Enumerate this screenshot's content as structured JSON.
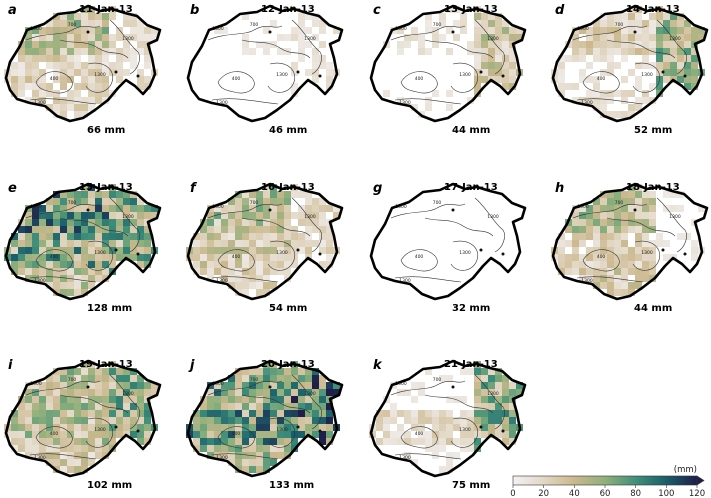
{
  "panels": [
    {
      "letter": "a",
      "date": "11-Jan-13",
      "total": "66 mm",
      "wet": [
        0.55,
        0.35,
        0.25,
        0.3
      ]
    },
    {
      "letter": "b",
      "date": "12-Jan-13",
      "total": "46 mm",
      "wet": [
        0.15,
        0.1,
        0.2,
        0.1
      ]
    },
    {
      "letter": "c",
      "date": "13-Jan-13",
      "total": "44 mm",
      "wet": [
        0.2,
        0.1,
        0.45,
        0.15
      ]
    },
    {
      "letter": "d",
      "date": "14-Jan-13",
      "total": "52 mm",
      "wet": [
        0.35,
        0.2,
        0.6,
        0.25
      ]
    },
    {
      "letter": "e",
      "date": "15-Jan-13",
      "total": "128 mm",
      "wet": [
        0.85,
        0.75,
        0.7,
        0.5
      ]
    },
    {
      "letter": "f",
      "date": "16-Jan-13",
      "total": "54 mm",
      "wet": [
        0.55,
        0.45,
        0.3,
        0.35
      ]
    },
    {
      "letter": "g",
      "date": "17-Jan-13",
      "total": "32 mm",
      "wet": [
        0.1,
        0.05,
        0.05,
        0.1
      ]
    },
    {
      "letter": "h",
      "date": "18-Jan-13",
      "total": "44 mm",
      "wet": [
        0.55,
        0.35,
        0.15,
        0.4
      ]
    },
    {
      "letter": "i",
      "date": "19-Jan-13",
      "total": "102 mm",
      "wet": [
        0.55,
        0.55,
        0.7,
        0.4
      ]
    },
    {
      "letter": "j",
      "date": "20-Jan-13",
      "total": "133 mm",
      "wet": [
        0.75,
        0.85,
        0.95,
        0.6
      ]
    },
    {
      "letter": "k",
      "date": "21-Jan-13",
      "total": "75 mm",
      "wet": [
        0.15,
        0.3,
        0.7,
        0.15
      ]
    }
  ],
  "contour_labels": [
    "1000",
    "700",
    "400",
    "1300",
    "1300",
    "1300"
  ],
  "colorbar": {
    "unit": "(mm)",
    "ticks": [
      "0",
      "20",
      "40",
      "60",
      "80",
      "100",
      "120"
    ],
    "min": 0,
    "max": 120,
    "colors": [
      "#f3f1f3",
      "#e2d7c4",
      "#cbb88e",
      "#8fb07c",
      "#3f8f7a",
      "#1b5f6b",
      "#1f1f4a"
    ]
  }
}
